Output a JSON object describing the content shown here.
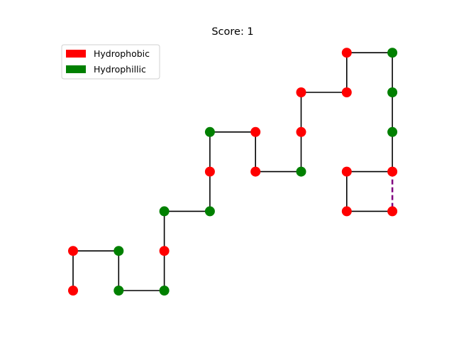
{
  "title": "Score: 1",
  "legend": [
    {
      "label": "Hydrophobic",
      "color": "#ff0000"
    },
    {
      "label": "Hydrophillic",
      "color": "#008000"
    }
  ],
  "colors": {
    "H": "#ff0000",
    "P": "#008000",
    "backbone": "#000000",
    "contact": "#800080"
  },
  "chart_data": {
    "type": "scatter",
    "title": "Score: 1",
    "grid": false,
    "legend_position": "top-left",
    "series": [
      {
        "name": "Hydrophobic",
        "color": "#ff0000"
      },
      {
        "name": "Hydrophillic",
        "color": "#008000"
      }
    ],
    "chain": [
      {
        "x": 0,
        "y": 0,
        "type": "H"
      },
      {
        "x": 0,
        "y": 1,
        "type": "H"
      },
      {
        "x": 1,
        "y": 1,
        "type": "P"
      },
      {
        "x": 1,
        "y": 0,
        "type": "P"
      },
      {
        "x": 2,
        "y": 0,
        "type": "P"
      },
      {
        "x": 2,
        "y": 1,
        "type": "H"
      },
      {
        "x": 2,
        "y": 2,
        "type": "P"
      },
      {
        "x": 3,
        "y": 2,
        "type": "P"
      },
      {
        "x": 3,
        "y": 3,
        "type": "H"
      },
      {
        "x": 3,
        "y": 4,
        "type": "P"
      },
      {
        "x": 4,
        "y": 4,
        "type": "H"
      },
      {
        "x": 4,
        "y": 3,
        "type": "H"
      },
      {
        "x": 5,
        "y": 3,
        "type": "P"
      },
      {
        "x": 5,
        "y": 4,
        "type": "H"
      },
      {
        "x": 5,
        "y": 5,
        "type": "H"
      },
      {
        "x": 6,
        "y": 5,
        "type": "H"
      },
      {
        "x": 6,
        "y": 6,
        "type": "H"
      },
      {
        "x": 7,
        "y": 6,
        "type": "P"
      },
      {
        "x": 7,
        "y": 5,
        "type": "P"
      },
      {
        "x": 7,
        "y": 4,
        "type": "P"
      },
      {
        "x": 7,
        "y": 3,
        "type": "H"
      },
      {
        "x": 6,
        "y": 3,
        "type": "H"
      },
      {
        "x": 6,
        "y": 2,
        "type": "H"
      },
      {
        "x": 7,
        "y": 2,
        "type": "H"
      }
    ],
    "contacts": [
      {
        "from": 20,
        "to": 23
      }
    ],
    "xlim": [
      -0.3,
      7.3
    ],
    "ylim": [
      -0.3,
      6.3
    ]
  }
}
